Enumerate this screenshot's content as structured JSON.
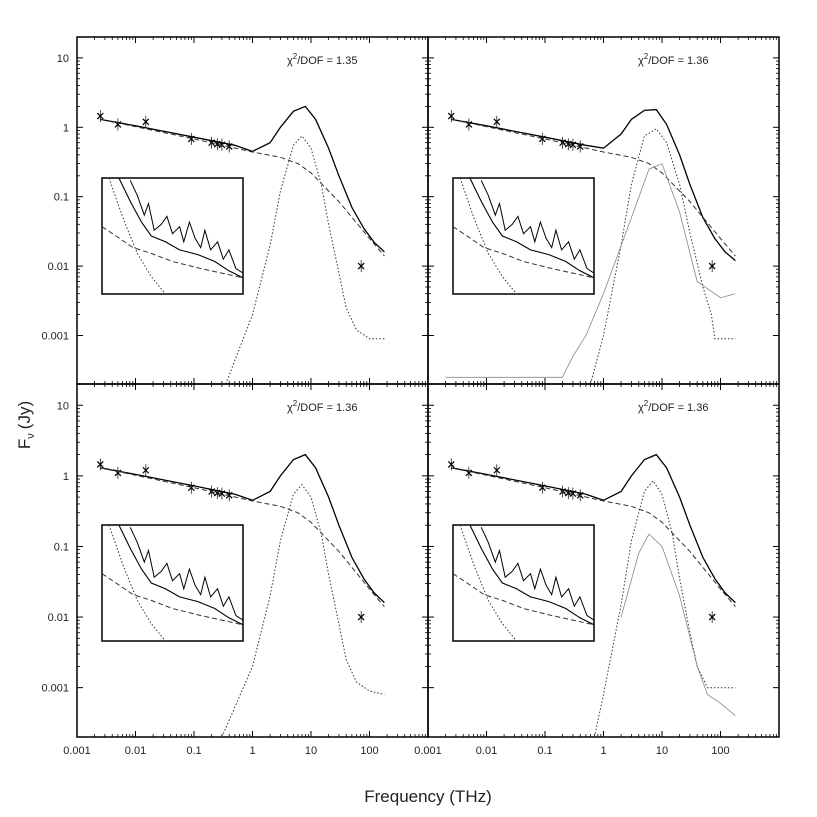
{
  "figure": {
    "xlabel": "Frequency (THz)",
    "ylabel_main": "F",
    "ylabel_sub": "ν",
    "ylabel_unit": "(Jy)",
    "colors": {
      "axes": "#000000",
      "curve": "#000000",
      "component": "#333333",
      "background": "#ffffff"
    }
  },
  "chart_data": [
    {
      "type": "scatter",
      "panel": "top-left",
      "annotation": "χ²/DOF = 1.35",
      "chi_prefix": "χ",
      "chi_exp": "2",
      "chi_rest": "/DOF = 1.35",
      "x_scale": "log",
      "y_scale": "log",
      "xlim": [
        0.001,
        1000
      ],
      "ylim": [
        0.0002,
        20
      ],
      "x_ticks": [
        "0.001",
        "0.01",
        "0.1",
        "1",
        "10",
        "100"
      ],
      "y_ticks": [
        "10",
        "1",
        "0.1",
        "0.01",
        "0.001"
      ],
      "series": [
        {
          "marker": "x",
          "x": [
            0.0025,
            0.005,
            0.015,
            0.09,
            0.2,
            0.25,
            0.3,
            0.4,
            72
          ],
          "y": [
            1.45,
            1.1,
            1.2,
            0.68,
            0.6,
            0.57,
            0.56,
            0.53,
            0.01
          ]
        },
        {
          "style": "solid",
          "x": [
            0.0025,
            0.01,
            0.1,
            0.5,
            1,
            2,
            3,
            5,
            8,
            12,
            20,
            30,
            50,
            80,
            120,
            180
          ],
          "y": [
            1.3,
            1.05,
            0.72,
            0.55,
            0.45,
            0.6,
            1.0,
            1.7,
            2.0,
            1.3,
            0.5,
            0.2,
            0.07,
            0.035,
            0.022,
            0.016
          ]
        },
        {
          "style": "dashed",
          "x": [
            0.0025,
            0.1,
            1,
            3,
            6,
            10,
            30,
            100,
            180
          ],
          "y": [
            1.3,
            0.68,
            0.44,
            0.37,
            0.3,
            0.22,
            0.085,
            0.025,
            0.014
          ]
        },
        {
          "style": "dotted",
          "x": [
            0.35,
            1,
            2,
            3,
            5,
            7,
            10,
            15,
            20,
            30,
            40,
            60,
            100,
            180
          ],
          "y": [
            0.0002,
            0.002,
            0.02,
            0.12,
            0.55,
            0.75,
            0.5,
            0.15,
            0.04,
            0.008,
            0.0025,
            0.0012,
            0.0009,
            0.0009
          ]
        }
      ]
    },
    {
      "type": "scatter",
      "panel": "top-right",
      "annotation": "χ²/DOF = 1.36",
      "chi_prefix": "χ",
      "chi_exp": "2",
      "chi_rest": "/DOF = 1.36",
      "x_scale": "log",
      "y_scale": "log",
      "xlim": [
        0.001,
        1000
      ],
      "ylim": [
        0.0002,
        20
      ],
      "x_ticks": [
        "0.001",
        "0.01",
        "0.1",
        "1",
        "10",
        "100"
      ],
      "y_ticks": [],
      "series": [
        {
          "marker": "x",
          "x": [
            0.0025,
            0.005,
            0.015,
            0.09,
            0.2,
            0.25,
            0.3,
            0.4,
            72
          ],
          "y": [
            1.45,
            1.1,
            1.2,
            0.68,
            0.6,
            0.57,
            0.56,
            0.53,
            0.01
          ]
        },
        {
          "style": "solid",
          "x": [
            0.0025,
            0.01,
            0.1,
            0.5,
            1,
            2,
            3,
            5,
            8,
            12,
            20,
            30,
            50,
            80,
            120,
            180
          ],
          "y": [
            1.3,
            1.05,
            0.72,
            0.55,
            0.5,
            0.8,
            1.3,
            1.75,
            1.8,
            1.1,
            0.4,
            0.15,
            0.05,
            0.025,
            0.016,
            0.012
          ]
        },
        {
          "style": "dashed",
          "x": [
            0.0025,
            0.1,
            1,
            3,
            6,
            10,
            30,
            100,
            180
          ],
          "y": [
            1.3,
            0.68,
            0.44,
            0.37,
            0.3,
            0.22,
            0.085,
            0.025,
            0.014
          ]
        },
        {
          "style": "dotted",
          "x": [
            0.6,
            1,
            2,
            3,
            5,
            8,
            12,
            20,
            30,
            50,
            70,
            80,
            100,
            180
          ],
          "y": [
            0.0002,
            0.001,
            0.02,
            0.15,
            0.75,
            0.95,
            0.6,
            0.15,
            0.03,
            0.005,
            0.002,
            0.0009,
            0.0009,
            0.0009
          ]
        },
        {
          "style": "faint",
          "x": [
            0.002,
            0.2,
            0.22,
            0.3,
            0.5,
            1,
            3,
            6,
            10,
            20,
            40,
            100,
            180
          ],
          "y": [
            0.00025,
            0.00025,
            0.0003,
            0.0005,
            0.001,
            0.004,
            0.05,
            0.25,
            0.3,
            0.06,
            0.006,
            0.0035,
            0.004
          ]
        }
      ]
    },
    {
      "type": "scatter",
      "panel": "bottom-left",
      "annotation": "χ²/DOF = 1.36",
      "chi_prefix": "χ",
      "chi_exp": "2",
      "chi_rest": "/DOF = 1.36",
      "x_scale": "log",
      "y_scale": "log",
      "xlim": [
        0.001,
        1000
      ],
      "ylim": [
        0.0002,
        20
      ],
      "x_ticks": [
        "0.001",
        "0.01",
        "0.1",
        "1",
        "10",
        "100"
      ],
      "y_ticks": [
        "10",
        "1",
        "0.1",
        "0.01",
        "0.001"
      ],
      "series": [
        {
          "marker": "x",
          "x": [
            0.0025,
            0.005,
            0.015,
            0.09,
            0.2,
            0.25,
            0.3,
            0.4,
            72
          ],
          "y": [
            1.45,
            1.1,
            1.2,
            0.68,
            0.6,
            0.57,
            0.56,
            0.53,
            0.01
          ]
        },
        {
          "style": "solid",
          "x": [
            0.0025,
            0.01,
            0.1,
            0.5,
            1,
            2,
            3,
            5,
            8,
            12,
            20,
            30,
            50,
            80,
            120,
            180
          ],
          "y": [
            1.3,
            1.05,
            0.72,
            0.55,
            0.45,
            0.6,
            1.0,
            1.7,
            2.0,
            1.3,
            0.5,
            0.2,
            0.07,
            0.035,
            0.022,
            0.016
          ]
        },
        {
          "style": "dashed",
          "x": [
            0.0025,
            0.1,
            1,
            3,
            6,
            10,
            30,
            100,
            180
          ],
          "y": [
            1.3,
            0.68,
            0.44,
            0.37,
            0.3,
            0.22,
            0.085,
            0.025,
            0.014
          ]
        },
        {
          "style": "dotted",
          "x": [
            0.3,
            1,
            2,
            3,
            5,
            7,
            10,
            15,
            20,
            30,
            40,
            60,
            100,
            180
          ],
          "y": [
            0.0002,
            0.002,
            0.02,
            0.12,
            0.55,
            0.75,
            0.5,
            0.15,
            0.04,
            0.008,
            0.0025,
            0.0012,
            0.0009,
            0.0008
          ]
        }
      ]
    },
    {
      "type": "scatter",
      "panel": "bottom-right",
      "annotation": "χ²/DOF = 1.36",
      "chi_prefix": "χ",
      "chi_exp": "2",
      "chi_rest": "/DOF = 1.36",
      "x_scale": "log",
      "y_scale": "log",
      "xlim": [
        0.001,
        1000
      ],
      "ylim": [
        0.0002,
        20
      ],
      "x_ticks": [
        "0.001",
        "0.01",
        "0.1",
        "1",
        "10",
        "100"
      ],
      "y_ticks": [],
      "series": [
        {
          "marker": "x",
          "x": [
            0.0025,
            0.005,
            0.015,
            0.09,
            0.2,
            0.25,
            0.3,
            0.4,
            72
          ],
          "y": [
            1.45,
            1.1,
            1.2,
            0.68,
            0.6,
            0.57,
            0.56,
            0.53,
            0.01
          ]
        },
        {
          "style": "solid",
          "x": [
            0.0025,
            0.01,
            0.1,
            0.5,
            1,
            2,
            3,
            5,
            8,
            12,
            20,
            30,
            50,
            80,
            120,
            180
          ],
          "y": [
            1.3,
            1.05,
            0.72,
            0.55,
            0.45,
            0.6,
            1.0,
            1.7,
            2.0,
            1.3,
            0.5,
            0.2,
            0.07,
            0.035,
            0.022,
            0.016
          ]
        },
        {
          "style": "dashed",
          "x": [
            0.0025,
            0.1,
            1,
            3,
            6,
            10,
            30,
            100,
            180
          ],
          "y": [
            1.3,
            0.68,
            0.44,
            0.37,
            0.3,
            0.22,
            0.085,
            0.025,
            0.014
          ]
        },
        {
          "style": "dotted",
          "x": [
            0.7,
            1,
            2,
            3,
            5,
            7,
            10,
            15,
            20,
            30,
            40,
            60,
            100,
            180
          ],
          "y": [
            0.0002,
            0.0008,
            0.015,
            0.12,
            0.6,
            0.85,
            0.55,
            0.15,
            0.035,
            0.006,
            0.002,
            0.001,
            0.001,
            0.001
          ]
        },
        {
          "style": "faint",
          "x": [
            2,
            4,
            6,
            10,
            20,
            40,
            60,
            100,
            180
          ],
          "y": [
            0.01,
            0.08,
            0.15,
            0.1,
            0.02,
            0.002,
            0.0008,
            0.0006,
            0.0004
          ]
        }
      ]
    }
  ]
}
